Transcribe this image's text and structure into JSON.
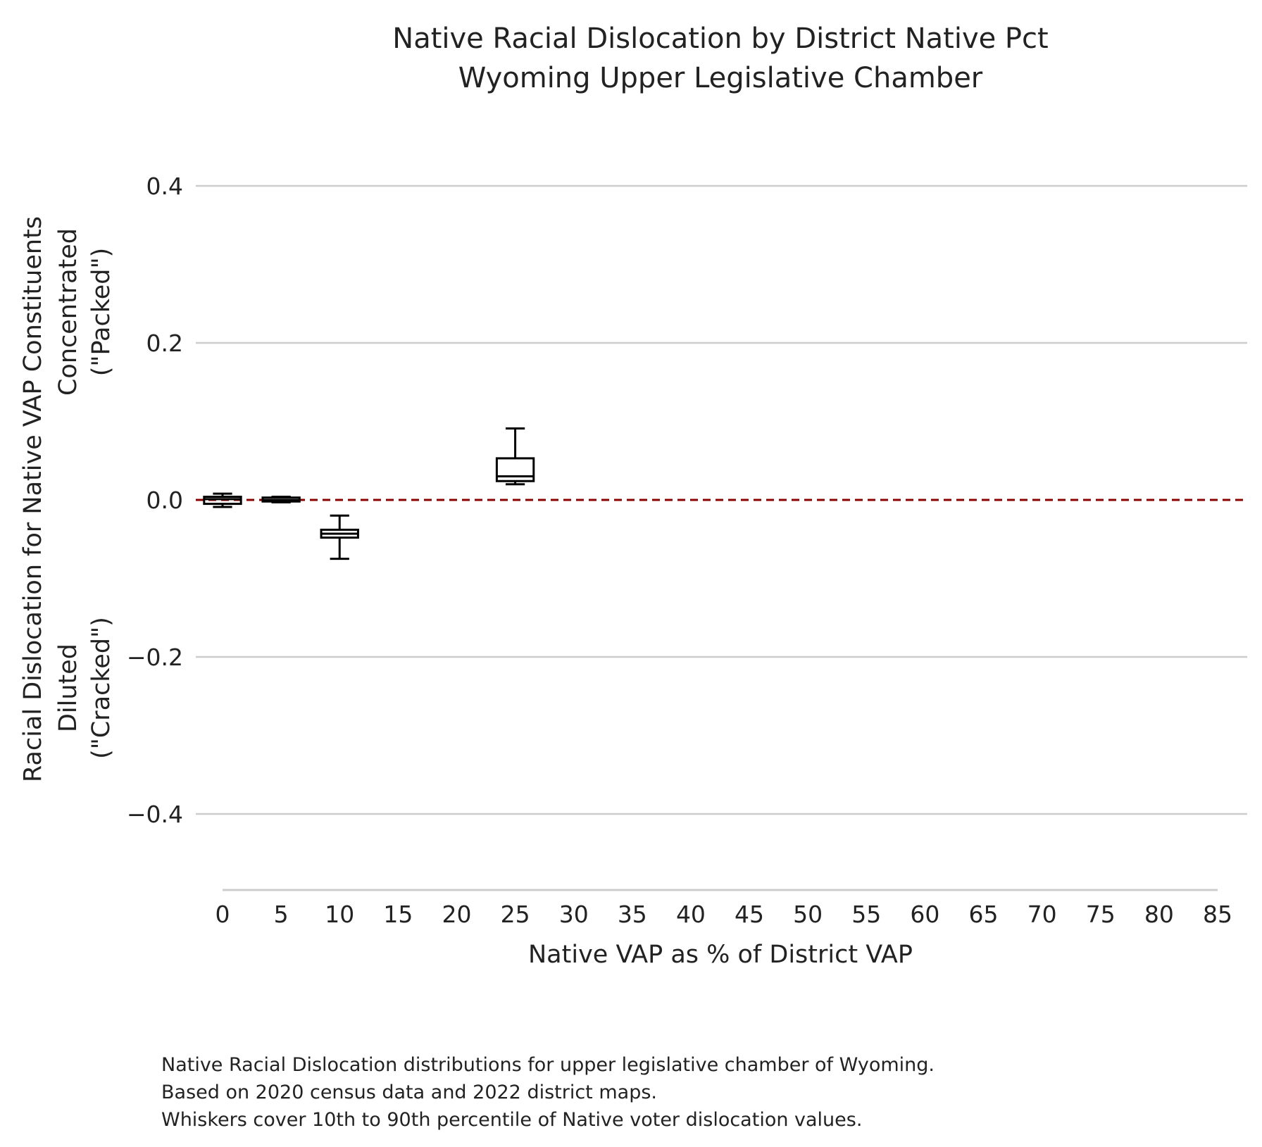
{
  "chart_data": {
    "type": "box",
    "title": [
      "Native Racial Dislocation by District Native Pct",
      "Wyoming Upper Legislative Chamber"
    ],
    "xlabel": "Native VAP as % of District VAP",
    "ylabel": [
      "Racial Dislocation for Native VAP Constituents"
    ],
    "ylabel_annotations": {
      "top": [
        "Concentrated",
        "(\"Packed\")"
      ],
      "bottom": [
        "Diluted",
        "(\"Cracked\")"
      ]
    },
    "xlim": [
      0,
      85
    ],
    "ylim": [
      -0.5,
      0.43
    ],
    "x_ticks": [
      0,
      5,
      10,
      15,
      20,
      25,
      30,
      35,
      40,
      45,
      50,
      55,
      60,
      65,
      70,
      75,
      80,
      85
    ],
    "x_tick_labels": [
      "0",
      "5",
      "10",
      "15",
      "20",
      "25",
      "30",
      "35",
      "40",
      "45",
      "50",
      "55",
      "60",
      "65",
      "70",
      "75",
      "80",
      "85"
    ],
    "y_ticks": [
      0.4,
      0.2,
      0.0,
      -0.2,
      -0.4
    ],
    "y_tick_labels": [
      "0.4",
      "0.2",
      "0.0",
      "−0.2",
      "−0.4"
    ],
    "grid": "horizontal",
    "reference_line": {
      "y": 0.0,
      "style": "dashed",
      "color": "#8b0000"
    },
    "boxes": [
      {
        "x": 0,
        "whisker_low": -0.009,
        "q1": -0.005,
        "median": 0.001,
        "q3": 0.004,
        "whisker_high": 0.008
      },
      {
        "x": 5,
        "whisker_low": -0.003,
        "q1": -0.002,
        "median": 0.0,
        "q3": 0.003,
        "whisker_high": 0.004
      },
      {
        "x": 10,
        "whisker_low": -0.075,
        "q1": -0.048,
        "median": -0.043,
        "q3": -0.038,
        "whisker_high": -0.02
      },
      {
        "x": 25,
        "whisker_low": 0.02,
        "q1": 0.024,
        "median": 0.03,
        "q3": 0.053,
        "whisker_high": 0.091
      }
    ],
    "caption": [
      "Native Racial Dislocation distributions for upper legislative chamber of Wyoming.",
      "Based on 2020 census data and 2022 district maps.",
      "Whiskers cover 10th to 90th percentile of Native voter dislocation values."
    ]
  }
}
